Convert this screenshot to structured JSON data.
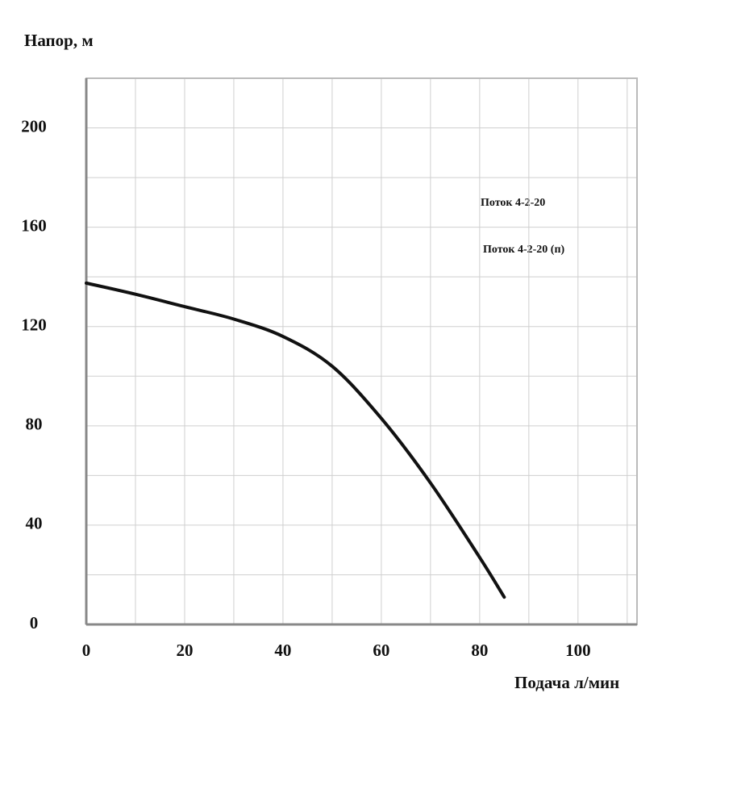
{
  "chart_data": {
    "type": "line",
    "y_label": "Напор, м",
    "x_label": "Подача л/мин",
    "annotations": [
      "Поток 4-2-20",
      "Поток 4-2-20 (п)"
    ],
    "x": [
      0,
      10,
      20,
      30,
      40,
      50,
      60,
      70,
      80,
      85
    ],
    "series": [
      {
        "color": "#111111",
        "values": [
          137.5,
          133,
          128,
          123,
          116,
          104,
          83,
          57,
          27,
          11
        ]
      }
    ],
    "xlim": [
      0,
      112
    ],
    "ylim": [
      0,
      220
    ],
    "xticks": [
      0,
      20,
      40,
      60,
      80,
      100
    ],
    "yticks": [
      0,
      40,
      80,
      120,
      160,
      200
    ],
    "xminorticks": [
      10,
      30,
      50,
      70,
      90,
      110
    ],
    "yminorticks": [
      20,
      60,
      100,
      140,
      180,
      220
    ],
    "grid": true
  }
}
